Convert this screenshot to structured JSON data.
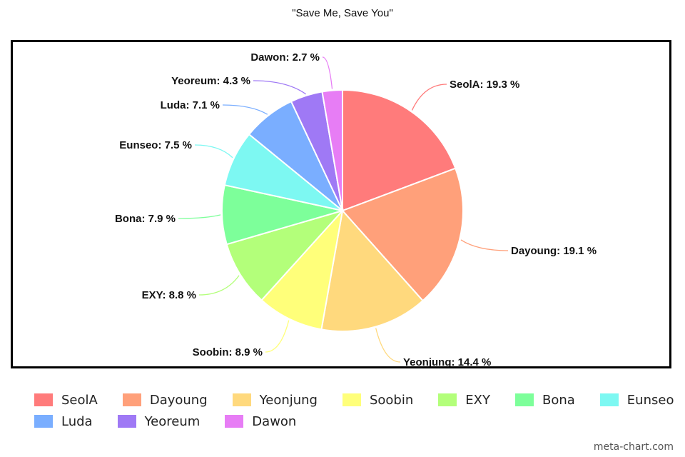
{
  "chart_data": {
    "type": "pie",
    "title": "\"Save Me, Save You\"",
    "unit": "%",
    "slices": [
      {
        "name": "SeolA",
        "value": 19.3,
        "label": "SeolA: 19.3 %",
        "color": "#ff7b7b"
      },
      {
        "name": "Dayoung",
        "value": 19.1,
        "label": "Dayoung: 19.1 %",
        "color": "#ffa07a"
      },
      {
        "name": "Yeonjung",
        "value": 14.4,
        "label": "Yeonjung: 14.4 %",
        "color": "#ffd97d"
      },
      {
        "name": "Soobin",
        "value": 8.9,
        "label": "Soobin: 8.9 %",
        "color": "#ffff7a"
      },
      {
        "name": "EXY",
        "value": 8.8,
        "label": "EXY: 8.8 %",
        "color": "#b3ff7a"
      },
      {
        "name": "Bona",
        "value": 7.9,
        "label": "Bona: 7.9 %",
        "color": "#7dff9a"
      },
      {
        "name": "Eunseo",
        "value": 7.5,
        "label": "Eunseo: 7.5 %",
        "color": "#7df8f2"
      },
      {
        "name": "Luda",
        "value": 7.1,
        "label": "Luda: 7.1 %",
        "color": "#7aaeff"
      },
      {
        "name": "Yeoreum",
        "value": 4.3,
        "label": "Yeoreum: 4.3 %",
        "color": "#9f79f5"
      },
      {
        "name": "Dawon",
        "value": 2.7,
        "label": "Dawon: 2.7 %",
        "color": "#e77df5"
      }
    ],
    "legend_position": "bottom"
  },
  "watermark": "meta-chart.com"
}
